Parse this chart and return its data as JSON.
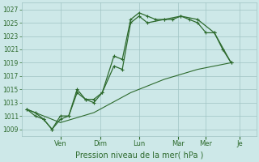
{
  "bg_color": "#cde8e8",
  "grid_color": "#a0c4c4",
  "line_color": "#2d6a2d",
  "marker_color": "#2d6a2d",
  "xlabel": "Pression niveau de la mer( hPa )",
  "ylim": [
    1008,
    1028
  ],
  "yticks": [
    1009,
    1011,
    1013,
    1015,
    1017,
    1019,
    1021,
    1023,
    1025,
    1027
  ],
  "xlim": [
    0,
    14
  ],
  "x_day_labels": [
    "Ven",
    "Dim",
    "Lun",
    "Mar",
    "Mer",
    "Je"
  ],
  "x_day_positions": [
    2.33,
    4.67,
    7.0,
    9.33,
    11.0,
    13.0
  ],
  "series1_x": [
    0.3,
    0.8,
    1.3,
    1.8,
    2.3,
    2.8,
    3.3,
    3.8,
    4.3,
    4.8,
    5.5,
    6.0,
    6.5,
    7.0,
    7.5,
    8.0,
    8.5,
    9.0,
    9.5,
    10.0,
    10.5,
    11.0,
    11.5,
    12.0,
    12.5
  ],
  "series1_y": [
    1012.0,
    1011.0,
    1010.5,
    1009.0,
    1011.0,
    1011.0,
    1014.5,
    1013.5,
    1013.5,
    1014.5,
    1020.0,
    1019.5,
    1025.5,
    1026.5,
    1026.0,
    1025.5,
    1025.5,
    1025.5,
    1026.0,
    1025.5,
    1025.0,
    1023.5,
    1023.5,
    1021.0,
    1019.0
  ],
  "series2_x": [
    0.3,
    0.8,
    1.3,
    1.8,
    2.3,
    2.8,
    3.3,
    3.8,
    4.3,
    4.8,
    5.5,
    6.0,
    6.5,
    7.0,
    7.5,
    8.5,
    9.5,
    10.5,
    11.5,
    12.5
  ],
  "series2_y": [
    1012.0,
    1011.5,
    1010.5,
    1009.0,
    1010.5,
    1011.0,
    1015.0,
    1013.5,
    1013.0,
    1014.5,
    1018.5,
    1018.0,
    1025.0,
    1026.0,
    1025.0,
    1025.5,
    1026.0,
    1025.5,
    1023.5,
    1019.0
  ],
  "series3_x": [
    0.3,
    2.3,
    4.3,
    6.5,
    8.5,
    10.5,
    12.5
  ],
  "series3_y": [
    1012.0,
    1010.0,
    1011.5,
    1014.5,
    1016.5,
    1018.0,
    1019.0
  ]
}
